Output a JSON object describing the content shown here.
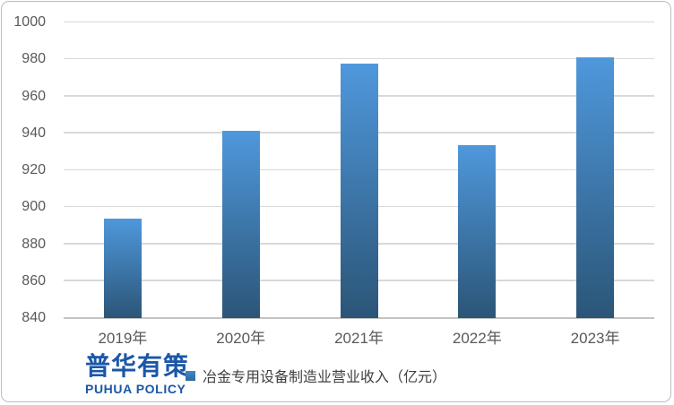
{
  "chart_data": {
    "type": "bar",
    "title": "",
    "categories": [
      "2019年",
      "2020年",
      "2021年",
      "2022年",
      "2023年"
    ],
    "values": [
      893.7,
      941.4,
      977.9,
      933.7,
      981.3
    ],
    "legend_label": "冶金专用设备制造业营业收入（亿元）",
    "xlabel": "",
    "ylabel": "",
    "ylim": [
      840,
      1000
    ],
    "ytick_step": 20,
    "ytick_labels": [
      "840",
      "860",
      "880",
      "900",
      "920",
      "940",
      "960",
      "980",
      "1000"
    ],
    "grid": true,
    "legend_position": "bottom"
  },
  "logo": {
    "cn": "普华有策",
    "en": "PUHUA POLICY"
  },
  "colors": {
    "bar_top": "#4f98dc",
    "bar_bottom": "#2b5577",
    "legend_marker_top": "#4189c7",
    "legend_marker_bottom": "#30699e",
    "gridline": "#d9d9d9",
    "axis_line": "#c3c3c3",
    "tick_label": "#595959",
    "legend_text": "#3f3f3f",
    "logo_blue": "#1b57a8",
    "frame_border": "#bdbdbd",
    "background": "#ffffff"
  }
}
